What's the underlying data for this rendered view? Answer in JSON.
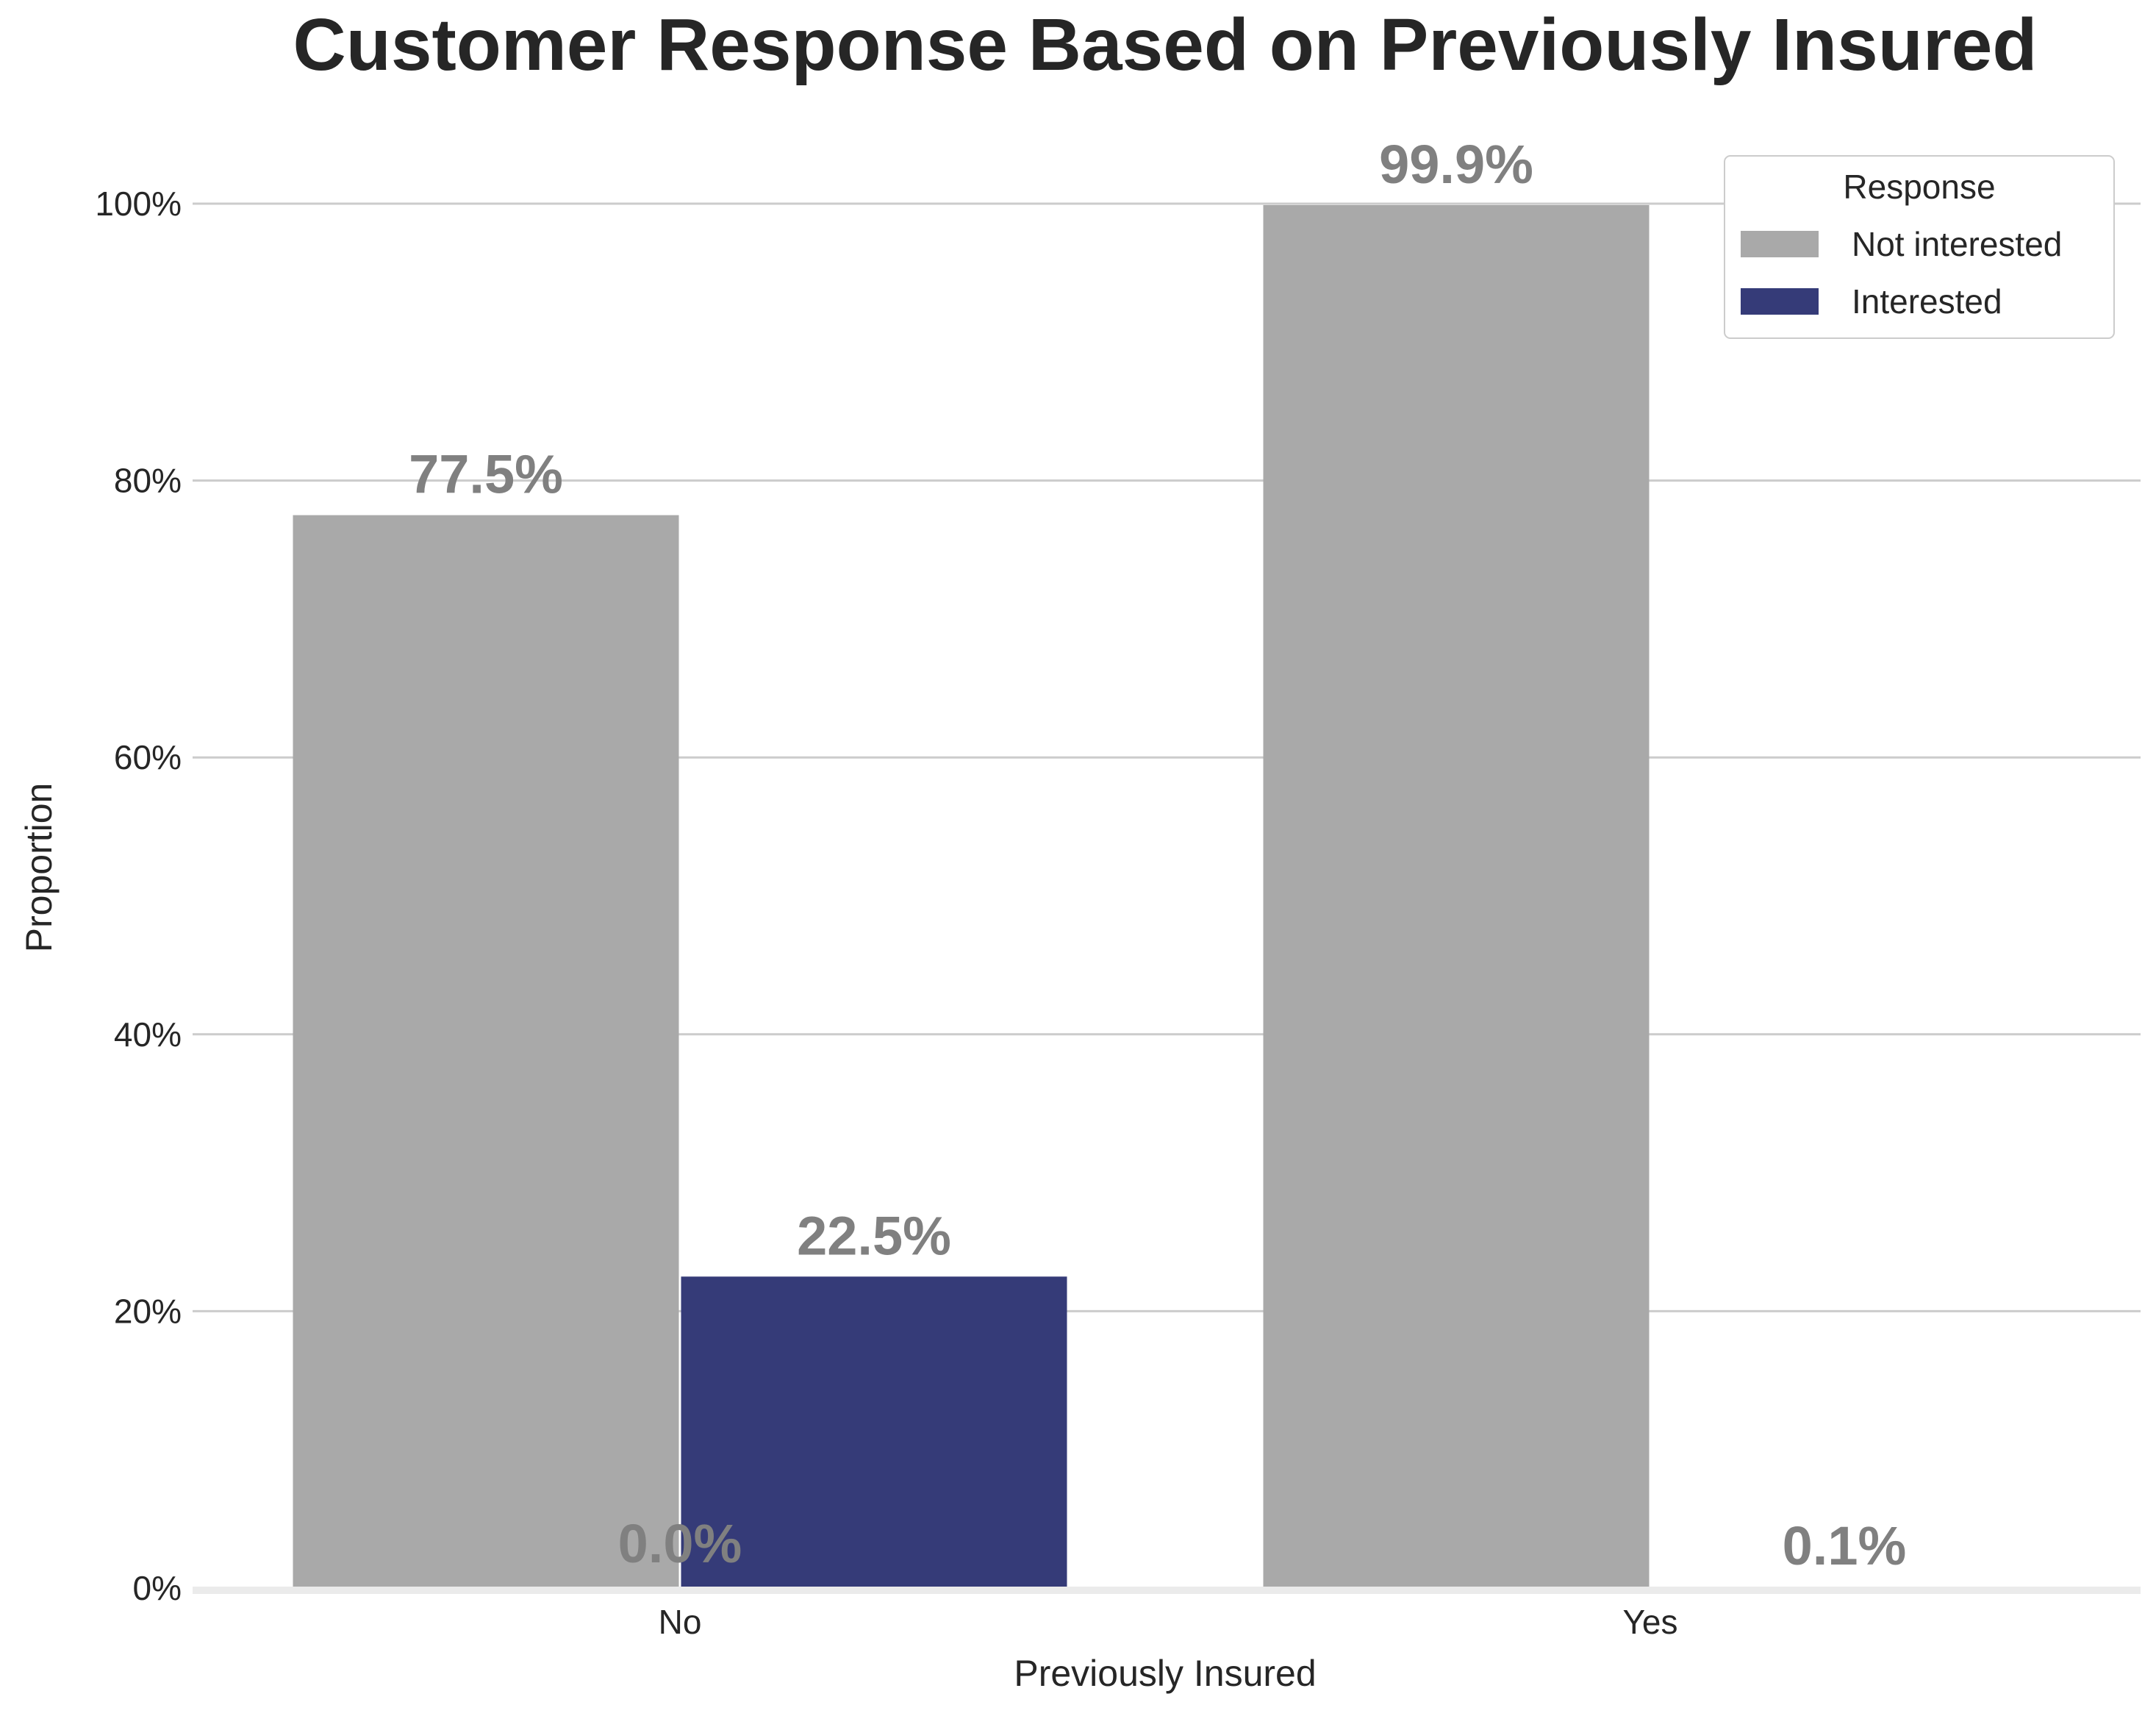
{
  "chart_data": {
    "type": "bar",
    "title": "Customer Response Based on Previously Insured",
    "xlabel": "Previously Insured",
    "ylabel": "Proportion",
    "categories": [
      "No",
      "Yes"
    ],
    "y_ticks": [
      "0%",
      "20%",
      "40%",
      "60%",
      "80%",
      "100%"
    ],
    "ylim": [
      0,
      1.0
    ],
    "grid": "horizontal",
    "legend": {
      "title": "Response",
      "placement": "top-right"
    },
    "series": [
      {
        "name": "Not interested",
        "color": "#a9a9a9",
        "values": [
          0.775,
          0.999
        ],
        "labels": [
          "77.5%",
          "99.9%"
        ]
      },
      {
        "name": "Interested",
        "color": "#353b78",
        "values": [
          0.225,
          0.001
        ],
        "labels": [
          "22.5%",
          "0.1%"
        ]
      }
    ],
    "annotations": [
      "0.0%"
    ]
  }
}
